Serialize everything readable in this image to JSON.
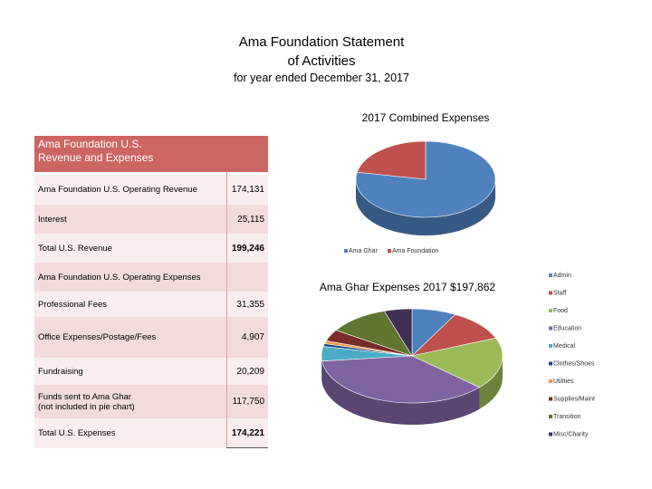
{
  "header": {
    "title": "Ama Foundation Statement\nof Activities",
    "subtitle": "for year ended December 31, 2017"
  },
  "table": {
    "header": "Ama Foundation U.S.\nRevenue and Expenses",
    "rows": [
      [
        "Ama Foundation U.S. Operating Revenue",
        "174,131"
      ],
      [
        "Interest",
        "25,115"
      ],
      [
        "Total U.S. Revenue",
        "199,246"
      ],
      [
        "Ama Foundation U.S. Operating Expenses"
      ],
      [
        "Professional Fees",
        "31,355"
      ],
      [
        "Office Expenses/Postage/Fees",
        "4,907"
      ],
      [
        "Fundraising",
        "20,209"
      ],
      [
        "Funds sent to Ama Ghar\n(not included in pie chart)",
        "117,750"
      ],
      [
        "Total U.S. Expenses",
        "174,221"
      ]
    ]
  },
  "chart_data": [
    {
      "type": "pie",
      "title": "2017 Combined Expenses",
      "categories": [
        "Ama Ghar",
        "Ama Foundation"
      ],
      "values": [
        78,
        22
      ],
      "colors": [
        "#4f81bd",
        "#c0504d"
      ],
      "legend": "bottom"
    },
    {
      "type": "pie",
      "title": "Ama Ghar Expenses 2017 $197,862",
      "categories": [
        "Admin",
        "Staff",
        "Food",
        "Education",
        "Medical",
        "Clothes/Shoes",
        "Utilities",
        "Supplies/Maint",
        "Transition",
        "Misc/Charity"
      ],
      "values": [
        8,
        11,
        18,
        37,
        5,
        1,
        1,
        4,
        11,
        5
      ],
      "colors": [
        "#4f81bd",
        "#c0504d",
        "#9bbb59",
        "#8064a2",
        "#4bacc6",
        "#1f497d",
        "#f79646",
        "#772c2a",
        "#5f7530",
        "#3f3151"
      ],
      "legend": "right"
    }
  ]
}
